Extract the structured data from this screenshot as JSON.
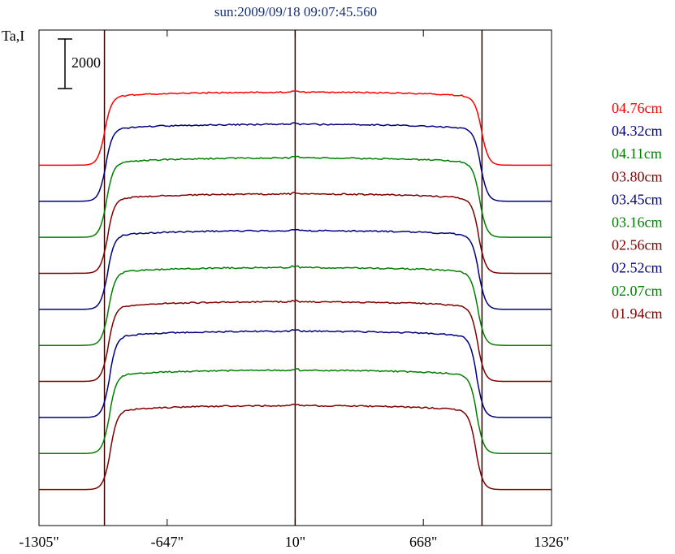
{
  "chart_data": {
    "type": "line",
    "title": "sun:2009/09/18 09:07:45.560",
    "ylabel": "Ta,I",
    "xlabel": "",
    "scale_bar_label": "2000",
    "x_tick_labels": [
      "-1305\"",
      "-647\"",
      "10\"",
      "668\"",
      "1326\""
    ],
    "x_ticks": [
      -1305,
      -647,
      10,
      668,
      1326
    ],
    "xlim": [
      -1305,
      1326
    ],
    "limb_markers": [
      -969,
      10,
      969
    ],
    "grid": false,
    "legend_position": "right",
    "series": [
      {
        "name": "04.76cm",
        "color": "#ff0000",
        "offset": 12000,
        "level": 2430,
        "edge": 1.0
      },
      {
        "name": "04.32cm",
        "color": "#00007f",
        "offset": 10800,
        "level": 2560,
        "edge": 0.995
      },
      {
        "name": "04.11cm",
        "color": "#007f00",
        "offset": 9600,
        "level": 2640,
        "edge": 0.99
      },
      {
        "name": "03.80cm",
        "color": "#7f0000",
        "offset": 8400,
        "level": 2640,
        "edge": 0.985
      },
      {
        "name": "03.45cm",
        "color": "#00007f",
        "offset": 7200,
        "level": 2620,
        "edge": 0.985
      },
      {
        "name": "03.16cm",
        "color": "#007f00",
        "offset": 6000,
        "level": 2590,
        "edge": 0.98
      },
      {
        "name": "02.56cm",
        "color": "#7f0000",
        "offset": 4800,
        "level": 2650,
        "edge": 0.98
      },
      {
        "name": "02.52cm",
        "color": "#00007f",
        "offset": 3600,
        "level": 2870,
        "edge": 0.975
      },
      {
        "name": "02.07cm",
        "color": "#007f00",
        "offset": 2400,
        "level": 2770,
        "edge": 0.975
      },
      {
        "name": "01.94cm",
        "color": "#7f0000",
        "offset": 1200,
        "level": 2790,
        "edge": 0.97
      }
    ],
    "ylim": [
      0,
      16500
    ]
  }
}
